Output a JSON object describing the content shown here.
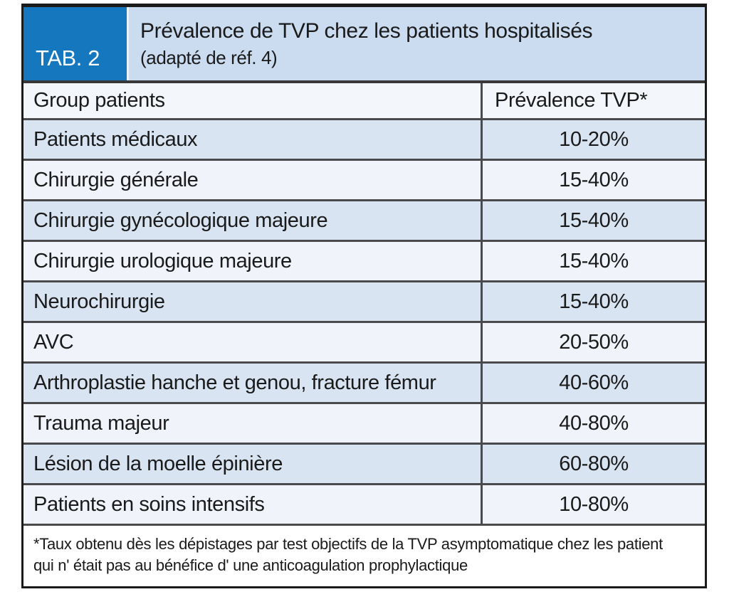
{
  "table": {
    "tag": "TAB. 2",
    "title": "Prévalence de TVP chez les patients hospitalisés",
    "subtitle": "(adapté de réf. 4)",
    "columns": [
      "Group patients",
      "Prévalence TVP*"
    ],
    "rows": [
      {
        "group": "Patients médicaux",
        "prevalence": "10-20%"
      },
      {
        "group": "Chirurgie générale",
        "prevalence": "15-40%"
      },
      {
        "group": "Chirurgie gynécologique majeure",
        "prevalence": "15-40%"
      },
      {
        "group": "Chirurgie urologique majeure",
        "prevalence": "15-40%"
      },
      {
        "group": "Neurochirurgie",
        "prevalence": "15-40%"
      },
      {
        "group": "AVC",
        "prevalence": "20-50%"
      },
      {
        "group": "Arthroplastie hanche et genou, fracture fémur",
        "prevalence": "40-60%"
      },
      {
        "group": "Trauma majeur",
        "prevalence": "40-80%"
      },
      {
        "group": "Lésion de la moelle épinière",
        "prevalence": "60-80%"
      },
      {
        "group": "Patients en soins intensifs",
        "prevalence": "10-80%"
      }
    ],
    "footnote_line1": "*Taux obtenu dès les dépistages par test objectifs de la TVP asymptomatique chez les patient",
    "footnote_line2": "qui n' était pas au bénéfice d' une anticoagulation prophylactique"
  },
  "colors": {
    "tab_blue": "#1577bd",
    "header_blue": "#cbdcf0",
    "colhead_bg": "#f3f7fb",
    "row_odd": "#d9e4f2",
    "row_even": "#f0f4fa",
    "border_dark": "#1b1b1b",
    "border_head": "#38383a",
    "border_gray": "#4a4a4c"
  },
  "chart_data": {
    "type": "table",
    "title": "Prévalence de TVP chez les patients hospitalisés (adapté de réf. 4)",
    "table_label": "TAB. 2",
    "columns": [
      "Group patients",
      "Prévalence TVP*"
    ],
    "rows": [
      [
        "Patients médicaux",
        "10-20%"
      ],
      [
        "Chirurgie générale",
        "15-40%"
      ],
      [
        "Chirurgie gynécologique majeure",
        "15-40%"
      ],
      [
        "Chirurgie urologique majeure",
        "15-40%"
      ],
      [
        "Neurochirurgie",
        "15-40%"
      ],
      [
        "AVC",
        "20-50%"
      ],
      [
        "Arthroplastie hanche et genou, fracture fémur",
        "40-60%"
      ],
      [
        "Trauma majeur",
        "40-80%"
      ],
      [
        "Lésion de la moelle épinière",
        "60-80%"
      ],
      [
        "Patients en soins intensifs",
        "10-80%"
      ]
    ],
    "footnote": "*Taux obtenu dès les dépistages par test objectifs de la TVP asymptomatique chez les patient qui n' était pas au bénéfice d' une anticoagulation prophylactique",
    "layout_hints": {
      "row_shading": "alternating light blue starting with first data row",
      "value_column_alignment": "center",
      "header_style": "blue tab box left, light blue title band"
    }
  }
}
